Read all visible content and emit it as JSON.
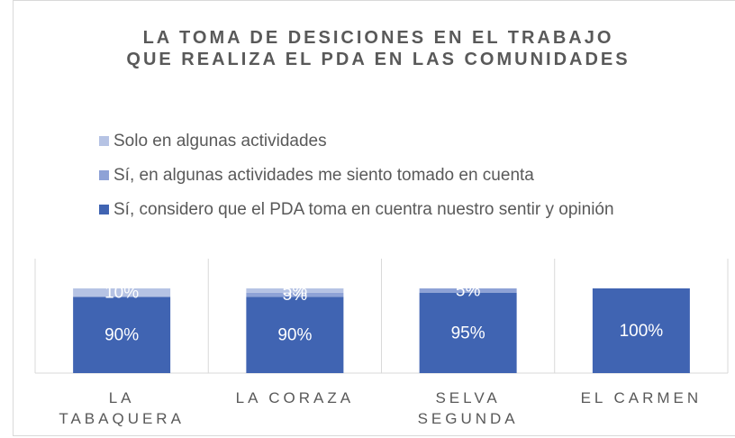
{
  "chart_data": {
    "type": "bar",
    "stacked": true,
    "title": "LA TOMA DE DESICIONES EN EL TRABAJO QUE REALIZA EL PDA EN LAS COMUNIDADES",
    "categories": [
      "LA TABAQUERA",
      "LA CORAZA",
      "SELVA SEGUNDA",
      "EL CARMEN"
    ],
    "ylim": [
      0,
      100
    ],
    "series": [
      {
        "name": "Sí, considero que el PDA toma en cuentra nuestro sentir y opinión",
        "color": "#4064b2",
        "values": [
          90,
          90,
          95,
          100
        ],
        "value_labels": [
          "90%",
          "90%",
          "95%",
          "100%"
        ]
      },
      {
        "name": "Sí, en algunas actividades me siento tomado en cuenta",
        "color": "#8ea2d6",
        "values": [
          null,
          5,
          5,
          null
        ],
        "value_labels": [
          null,
          "5%",
          "5%",
          null
        ]
      },
      {
        "name": "Solo en algunas actividades",
        "color": "#b6c3e4",
        "values": [
          10,
          5,
          null,
          null
        ],
        "value_labels": [
          "10%",
          "5%",
          null,
          null
        ]
      }
    ]
  }
}
